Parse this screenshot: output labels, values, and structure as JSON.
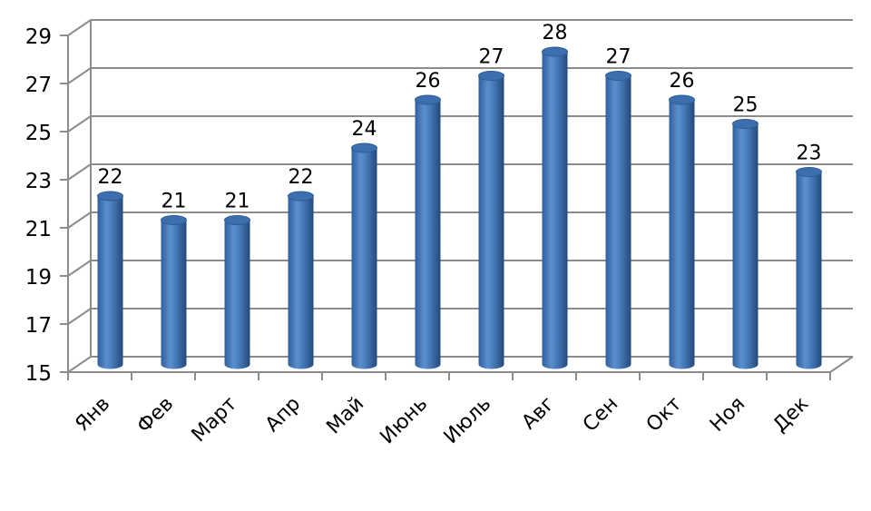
{
  "chart_data": {
    "type": "bar",
    "style": "3d-cylinder",
    "categories": [
      "Янв",
      "Фев",
      "Март",
      "Апр",
      "Май",
      "Июнь",
      "Июль",
      "Авг",
      "Сен",
      "Окт",
      "Ноя",
      "Дек"
    ],
    "values": [
      22,
      21,
      21,
      22,
      24,
      26,
      27,
      28,
      27,
      26,
      25,
      23
    ],
    "data_labels": [
      "22",
      "21",
      "21",
      "22",
      "24",
      "26",
      "27",
      "28",
      "27",
      "26",
      "25",
      "23"
    ],
    "title": "",
    "xlabel": "",
    "ylabel": "",
    "ylim": [
      15,
      29
    ],
    "yticks": [
      "15",
      "17",
      "19",
      "21",
      "23",
      "25",
      "27",
      "29"
    ],
    "grid": true,
    "legend": "none",
    "colors": {
      "bar": "#4a7ebb",
      "bar_dark": "#2c5a94",
      "bar_light": "#7ba6dc",
      "grid": "#8c8c8c"
    }
  }
}
